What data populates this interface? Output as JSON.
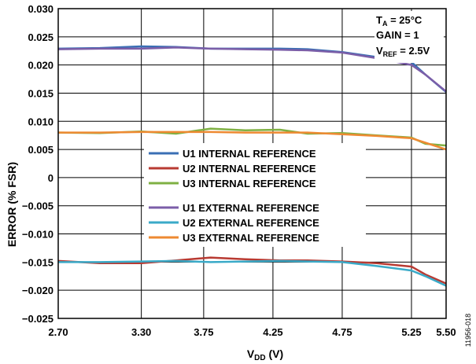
{
  "chart_data": {
    "type": "line",
    "xlabel": {
      "main": "V",
      "sub": "DD",
      "rest": " (V)"
    },
    "ylabel": "ERROR (% FSR)",
    "xlim": [
      2.7,
      5.5
    ],
    "ylim": [
      -0.025,
      0.03
    ],
    "x_ticks": [
      "2.70",
      "3.30",
      "3.75",
      "4.25",
      "4.75",
      "5.25",
      "5.50"
    ],
    "y_ticks": [
      "0.030",
      "0.025",
      "0.020",
      "0.015",
      "0.010",
      "0.005",
      "0",
      "−0.005",
      "−0.010",
      "−0.015",
      "−0.020",
      "−0.025"
    ],
    "grid": true,
    "annotations": [
      {
        "main": "T",
        "sub": "A",
        "rest": " = 25°C"
      },
      {
        "main": "GAIN = 1",
        "sub": "",
        "rest": ""
      },
      {
        "main": "V",
        "sub": "REF",
        "rest": " = 2.5V"
      }
    ],
    "figure_id": "11956-018",
    "x": [
      2.7,
      3.0,
      3.3,
      3.55,
      3.8,
      4.05,
      4.3,
      4.5,
      4.75,
      5.0,
      5.25,
      5.35,
      5.5
    ],
    "series": [
      {
        "name": "U1 INTERNAL REFERENCE",
        "color": "#3a6fb4",
        "values": [
          0.0229,
          0.023,
          0.0233,
          0.0232,
          0.0229,
          0.0229,
          0.0229,
          0.0228,
          0.0223,
          0.0214,
          0.0205,
          0.0183,
          0.0152
        ]
      },
      {
        "name": "U2 INTERNAL REFERENCE",
        "color": "#b83a32",
        "values": [
          -0.0148,
          -0.0152,
          -0.0152,
          -0.0147,
          -0.0142,
          -0.0145,
          -0.0147,
          -0.0147,
          -0.0149,
          -0.0152,
          -0.0158,
          -0.0172,
          -0.0188
        ]
      },
      {
        "name": "U3 INTERNAL REFERENCE",
        "color": "#7fb043",
        "values": [
          0.008,
          0.0079,
          0.0082,
          0.0078,
          0.0087,
          0.0084,
          0.0085,
          0.0078,
          0.0079,
          0.0075,
          0.0071,
          0.006,
          0.0057
        ]
      },
      {
        "name": "U1 EXTERNAL REFERENCE",
        "color": "#7b5ea8",
        "values": [
          0.0228,
          0.0229,
          0.0229,
          0.0231,
          0.0229,
          0.0228,
          0.0227,
          0.0226,
          0.0222,
          0.0212,
          0.02,
          0.0183,
          0.0153
        ]
      },
      {
        "name": "U2 EXTERNAL REFERENCE",
        "color": "#3aaac8",
        "values": [
          -0.015,
          -0.015,
          -0.0149,
          -0.0148,
          -0.015,
          -0.0149,
          -0.0148,
          -0.0149,
          -0.015,
          -0.0157,
          -0.0165,
          -0.0175,
          -0.0192
        ]
      },
      {
        "name": "U3 EXTERNAL REFERENCE",
        "color": "#ee8a32",
        "values": [
          0.008,
          0.008,
          0.0081,
          0.0081,
          0.0081,
          0.008,
          0.008,
          0.008,
          0.0077,
          0.0074,
          0.007,
          0.0062,
          0.005
        ]
      }
    ]
  }
}
